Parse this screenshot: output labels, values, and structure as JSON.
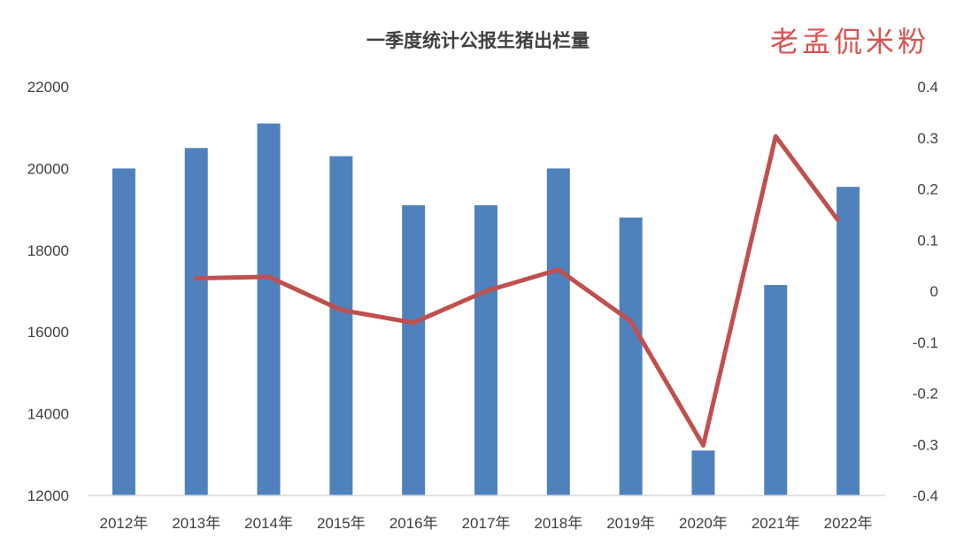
{
  "chart_data": {
    "type": "bar",
    "title": "一季度统计公报生猪出栏量",
    "watermark": "老孟侃米粉",
    "categories": [
      "2012年",
      "2013年",
      "2014年",
      "2015年",
      "2016年",
      "2017年",
      "2018年",
      "2019年",
      "2020年",
      "2021年",
      "2022年"
    ],
    "series": [
      {
        "type": "bar",
        "axis": "left",
        "color": "#4f81bd",
        "values": [
          20000,
          20500,
          21100,
          20300,
          19100,
          19100,
          20000,
          18800,
          13100,
          17150,
          19550
        ]
      },
      {
        "type": "line",
        "axis": "right",
        "color": "#c0504d",
        "values": [
          null,
          0.025,
          0.028,
          -0.037,
          -0.062,
          0.0,
          0.042,
          -0.059,
          -0.302,
          0.303,
          0.14
        ]
      }
    ],
    "y_left": {
      "min": 12000,
      "max": 22000,
      "ticks": [
        "12000",
        "14000",
        "16000",
        "18000",
        "20000",
        "22000"
      ]
    },
    "y_right": {
      "min": -0.4,
      "max": 0.4,
      "ticks": [
        "-0.4",
        "-0.3",
        "-0.2",
        "-0.1",
        "0",
        "0.1",
        "0.2",
        "0.3",
        "0.4"
      ]
    },
    "grid": false
  }
}
